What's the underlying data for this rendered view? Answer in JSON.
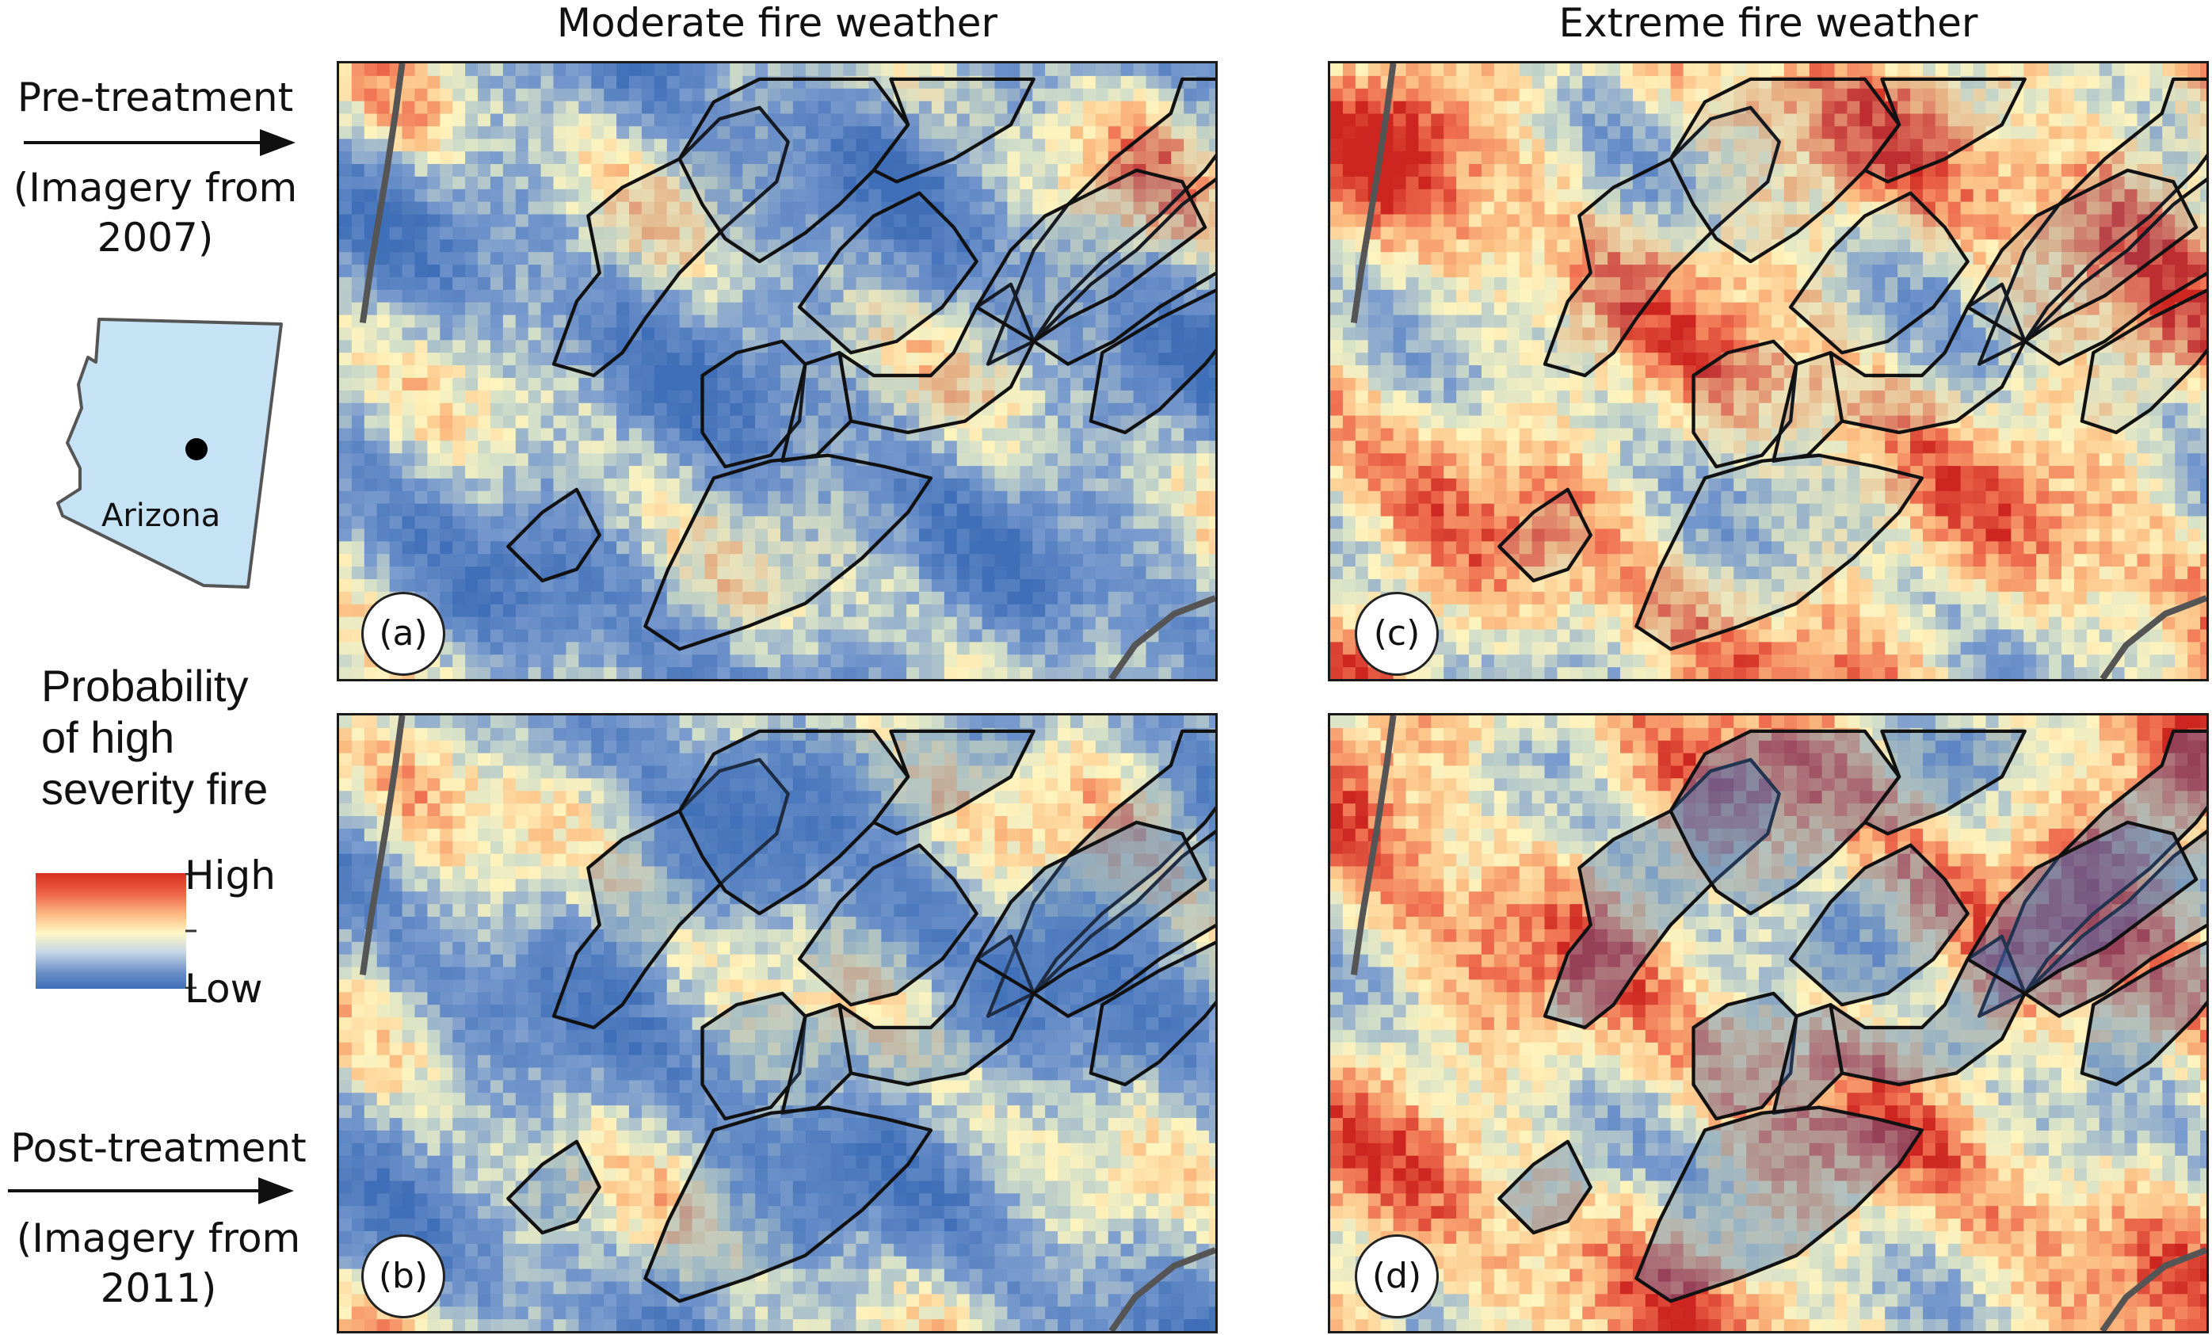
{
  "columns": {
    "moderate": "Moderate fire weather",
    "extreme": "Extreme fire weather"
  },
  "rows": {
    "pre": {
      "line1": "Pre-treatment",
      "line2": "(Imagery from",
      "line3": "2007)"
    },
    "post": {
      "line1": "Post-treatment",
      "line2": "(Imagery from",
      "line3": "2011)"
    }
  },
  "inset": {
    "label": "Arizona",
    "fill": "#c6e2f5"
  },
  "legend": {
    "title_line1": "Probability",
    "title_line2": "of high",
    "title_line3": "severity fire",
    "high": "High",
    "low": "Low",
    "colors": {
      "high": "#d7301f",
      "mid": "#fff7c4",
      "low": "#3f6fb8"
    }
  },
  "panels": [
    {
      "letter": "(a)",
      "weather": "moderate",
      "period": "pre"
    },
    {
      "letter": "(b)",
      "weather": "moderate",
      "period": "post"
    },
    {
      "letter": "(c)",
      "weather": "extreme",
      "period": "pre"
    },
    {
      "letter": "(d)",
      "weather": "extreme",
      "period": "post"
    }
  ]
}
